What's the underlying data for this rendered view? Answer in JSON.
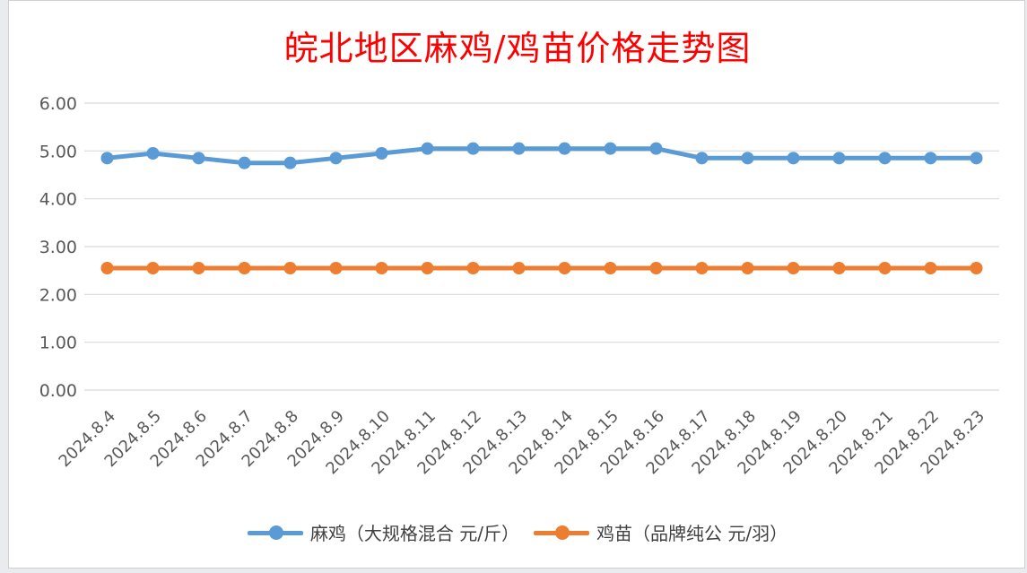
{
  "chart_data": {
    "type": "line",
    "title": "皖北地区麻鸡/鸡苗价格走势图",
    "xlabel": "",
    "ylabel": "",
    "ylim": [
      0,
      6
    ],
    "yticks": [
      "0.00",
      "1.00",
      "2.00",
      "3.00",
      "4.00",
      "5.00",
      "6.00"
    ],
    "grid": true,
    "legend_position": "bottom",
    "categories": [
      "2024.8.4",
      "2024.8.5",
      "2024.8.6",
      "2024.8.7",
      "2024.8.8",
      "2024.8.9",
      "2024.8.10",
      "2024.8.11",
      "2024.8.12",
      "2024.8.13",
      "2024.8.14",
      "2024.8.15",
      "2024.8.16",
      "2024.8.17",
      "2024.8.18",
      "2024.8.19",
      "2024.8.20",
      "2024.8.21",
      "2024.8.22",
      "2024.8.23"
    ],
    "series": [
      {
        "name": "麻鸡（大规格混合 元/斤）",
        "color": "#5b9bd5",
        "values": [
          4.85,
          4.95,
          4.85,
          4.75,
          4.75,
          4.85,
          4.95,
          5.05,
          5.05,
          5.05,
          5.05,
          5.05,
          5.05,
          4.85,
          4.85,
          4.85,
          4.85,
          4.85,
          4.85,
          4.85
        ]
      },
      {
        "name": "鸡苗（品牌纯公 元/羽）",
        "color": "#ed7d31",
        "values": [
          2.55,
          2.55,
          2.55,
          2.55,
          2.55,
          2.55,
          2.55,
          2.55,
          2.55,
          2.55,
          2.55,
          2.55,
          2.55,
          2.55,
          2.55,
          2.55,
          2.55,
          2.55,
          2.55,
          2.55
        ]
      }
    ]
  }
}
